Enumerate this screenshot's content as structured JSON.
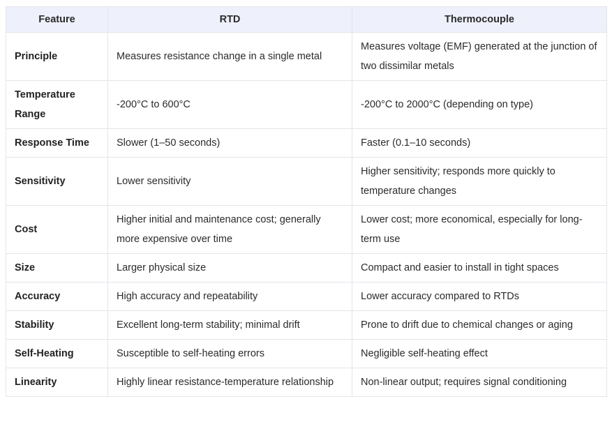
{
  "table": {
    "headers": [
      "Feature",
      "RTD",
      "Thermocouple"
    ],
    "rows": [
      {
        "feature": "Principle",
        "rtd": "Measures resistance change in a single metal",
        "thermocouple": "Measures voltage (EMF) generated at the junction of two dissimilar metals"
      },
      {
        "feature": "Temperature Range",
        "rtd": "-200°C to 600°C",
        "thermocouple": "-200°C to 2000°C (depending on type)"
      },
      {
        "feature": "Response Time",
        "rtd": "Slower (1–50 seconds)",
        "thermocouple": "Faster (0.1–10 seconds)"
      },
      {
        "feature": "Sensitivity",
        "rtd": "Lower sensitivity",
        "thermocouple": "Higher sensitivity; responds more quickly to temperature changes"
      },
      {
        "feature": "Cost",
        "rtd": "Higher initial and maintenance cost; generally more expensive over time",
        "thermocouple": "Lower cost; more economical, especially for long-term use"
      },
      {
        "feature": "Size",
        "rtd": "Larger physical size",
        "thermocouple": "Compact and easier to install in tight spaces"
      },
      {
        "feature": "Accuracy",
        "rtd": "High accuracy and repeatability",
        "thermocouple": "Lower accuracy compared to RTDs"
      },
      {
        "feature": "Stability",
        "rtd": "Excellent long-term stability; minimal drift",
        "thermocouple": "Prone to drift due to chemical changes or aging"
      },
      {
        "feature": "Self-Heating",
        "rtd": "Susceptible to self-heating errors",
        "thermocouple": "Negligible self-heating effect"
      },
      {
        "feature": "Linearity",
        "rtd": "Highly linear resistance-temperature relationship",
        "thermocouple": "Non-linear output; requires signal conditioning"
      }
    ]
  }
}
